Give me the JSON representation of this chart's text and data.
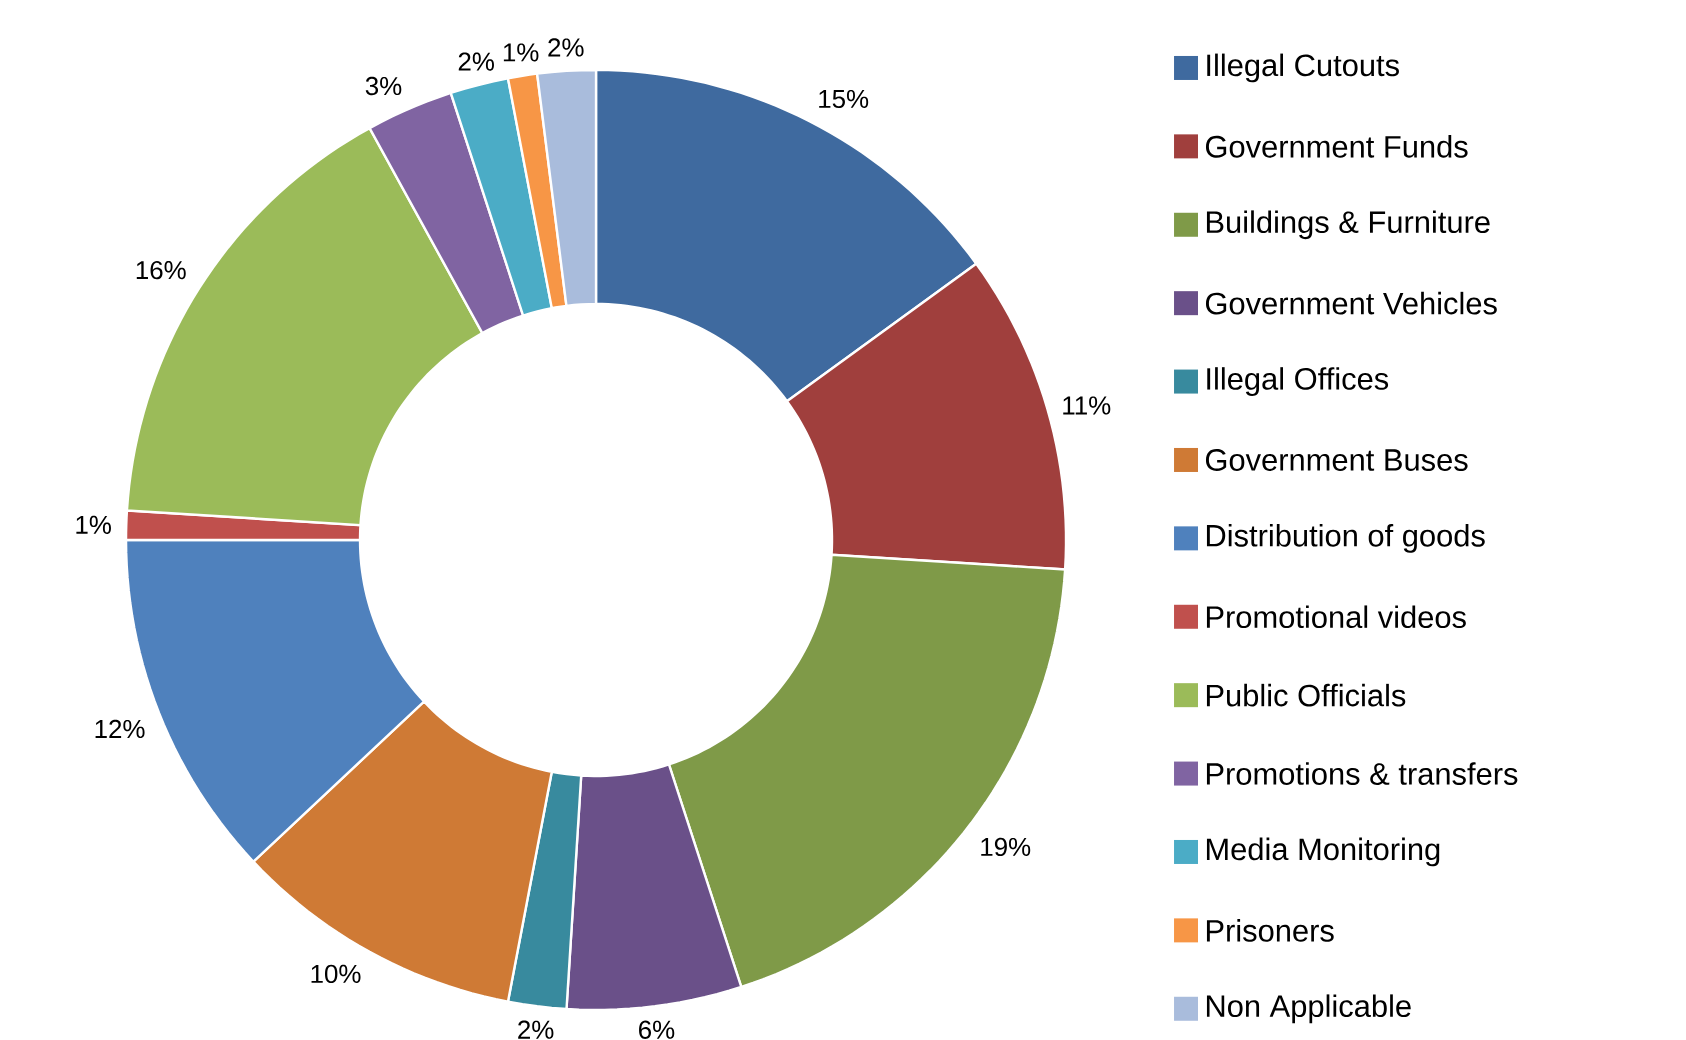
{
  "chart_data": {
    "type": "donut",
    "categories": [
      "Illegal Cutouts",
      "Government Funds",
      "Buildings & Furniture",
      "Government Vehicles",
      "Illegal Offices",
      "Government Buses",
      "Distribution of goods",
      "Promotional videos",
      "Public Officials",
      "Promotions & transfers",
      "Media Monitoring",
      "Prisoners",
      "Non Applicable"
    ],
    "values": [
      15,
      11,
      19,
      6,
      2,
      10,
      12,
      1,
      16,
      3,
      2,
      1,
      2
    ],
    "value_labels": [
      "15%",
      "11%",
      "19%",
      "6%",
      "2%",
      "10%",
      "12%",
      "1%",
      "16%",
      "3%",
      "2%",
      "1%",
      "2%"
    ],
    "colors": [
      "#3f6a9f",
      "#a03f3d",
      "#7f9a48",
      "#6a5089",
      "#388a9e",
      "#cf7a35",
      "#4f81bd",
      "#c0504d",
      "#9bbb59",
      "#8064a2",
      "#4bacc6",
      "#f79646",
      "#a9bcdc"
    ],
    "legend": "right"
  }
}
